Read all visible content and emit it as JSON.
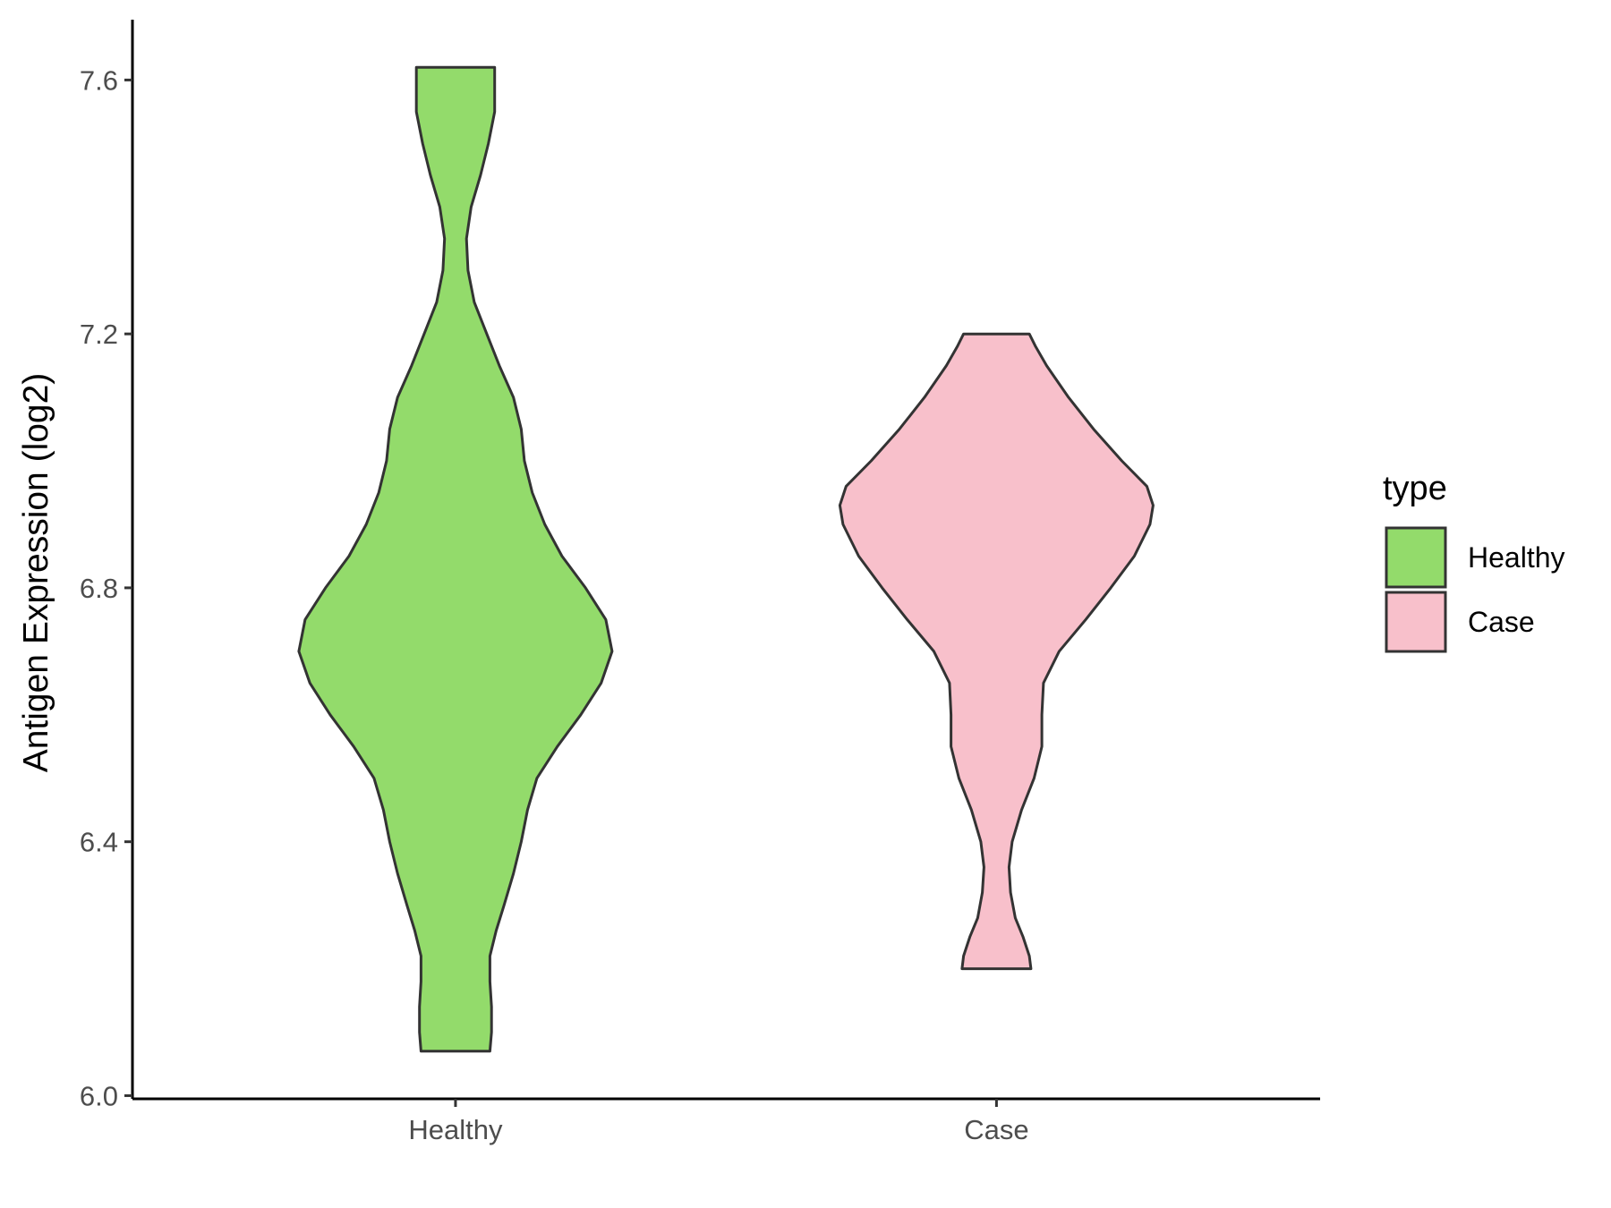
{
  "chart_data": {
    "type": "violin",
    "ylabel": "Antigen Expression (log2)",
    "xlabel": "",
    "ylim": [
      5.995,
      7.695
    ],
    "y_ticks": [
      6.0,
      6.4,
      6.8,
      7.2,
      7.6
    ],
    "y_tick_labels": [
      "6.0",
      "6.4",
      "6.8",
      "7.2",
      "7.6"
    ],
    "categories": [
      "Healthy",
      "Case"
    ],
    "legend": {
      "title": "type",
      "position": "right",
      "entries": [
        {
          "label": "Healthy",
          "color": "#93db6b"
        },
        {
          "label": "Case",
          "color": "#f8c0cb"
        }
      ]
    },
    "series": [
      {
        "category": "Healthy",
        "fill": "#93db6b",
        "min": 6.07,
        "max": 7.62,
        "density": [
          [
            6.07,
            0.22
          ],
          [
            6.1,
            0.23
          ],
          [
            6.14,
            0.23
          ],
          [
            6.18,
            0.22
          ],
          [
            6.22,
            0.22
          ],
          [
            6.26,
            0.26
          ],
          [
            6.3,
            0.31
          ],
          [
            6.35,
            0.37
          ],
          [
            6.4,
            0.42
          ],
          [
            6.45,
            0.46
          ],
          [
            6.5,
            0.52
          ],
          [
            6.55,
            0.65
          ],
          [
            6.6,
            0.8
          ],
          [
            6.65,
            0.93
          ],
          [
            6.7,
            1.0
          ],
          [
            6.75,
            0.96
          ],
          [
            6.8,
            0.83
          ],
          [
            6.85,
            0.68
          ],
          [
            6.9,
            0.57
          ],
          [
            6.95,
            0.49
          ],
          [
            7.0,
            0.44
          ],
          [
            7.05,
            0.42
          ],
          [
            7.1,
            0.37
          ],
          [
            7.15,
            0.28
          ],
          [
            7.2,
            0.2
          ],
          [
            7.25,
            0.12
          ],
          [
            7.3,
            0.08
          ],
          [
            7.35,
            0.07
          ],
          [
            7.4,
            0.1
          ],
          [
            7.45,
            0.16
          ],
          [
            7.5,
            0.21
          ],
          [
            7.55,
            0.25
          ],
          [
            7.6,
            0.25
          ],
          [
            7.62,
            0.25
          ]
        ]
      },
      {
        "category": "Case",
        "fill": "#f8c0cb",
        "min": 6.2,
        "max": 7.2,
        "density": [
          [
            6.2,
            0.22
          ],
          [
            6.22,
            0.21
          ],
          [
            6.25,
            0.17
          ],
          [
            6.28,
            0.12
          ],
          [
            6.32,
            0.09
          ],
          [
            6.36,
            0.08
          ],
          [
            6.4,
            0.1
          ],
          [
            6.45,
            0.16
          ],
          [
            6.5,
            0.24
          ],
          [
            6.55,
            0.29
          ],
          [
            6.6,
            0.29
          ],
          [
            6.65,
            0.3
          ],
          [
            6.7,
            0.4
          ],
          [
            6.75,
            0.57
          ],
          [
            6.8,
            0.73
          ],
          [
            6.85,
            0.88
          ],
          [
            6.9,
            0.98
          ],
          [
            6.93,
            1.0
          ],
          [
            6.96,
            0.96
          ],
          [
            7.0,
            0.8
          ],
          [
            7.05,
            0.62
          ],
          [
            7.1,
            0.46
          ],
          [
            7.15,
            0.32
          ],
          [
            7.18,
            0.25
          ],
          [
            7.2,
            0.21
          ]
        ]
      }
    ]
  }
}
